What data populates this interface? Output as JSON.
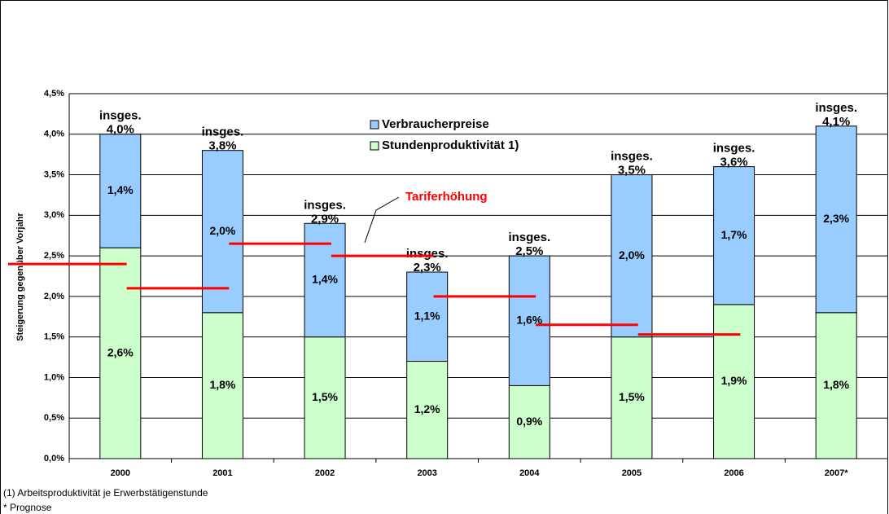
{
  "chart_data": {
    "type": "stacked_bar",
    "y_label": "Steigerung gegenüber Vorjahr",
    "categories": [
      "2000",
      "2001",
      "2002",
      "2003",
      "2004",
      "2005",
      "2006",
      "2007*"
    ],
    "series": [
      {
        "name": "Stundenproduktivität 1)",
        "color": "#ccffcc",
        "values": [
          2.6,
          1.8,
          1.5,
          1.2,
          0.9,
          1.5,
          1.9,
          1.8
        ],
        "value_labels": [
          "2,6%",
          "1,8%",
          "1,5%",
          "1,2%",
          "0,9%",
          "1,5%",
          "1,9%",
          "1,8%"
        ]
      },
      {
        "name": "Verbraucherpreise",
        "color": "#99ccff",
        "values": [
          1.4,
          2.0,
          1.4,
          1.1,
          1.6,
          2.0,
          1.7,
          2.3
        ],
        "value_labels": [
          "1,4%",
          "2,0%",
          "1,4%",
          "1,1%",
          "1,6%",
          "2,0%",
          "1,7%",
          "2,3%"
        ]
      }
    ],
    "total_prefix": "insges.",
    "totals": {
      "values": [
        4.0,
        3.8,
        2.9,
        2.3,
        2.5,
        3.5,
        3.6,
        4.1
      ],
      "value_labels": [
        "4,0%",
        "3,8%",
        "2,9%",
        "2,3%",
        "2,5%",
        "3,5%",
        "3,6%",
        "4,1%"
      ]
    },
    "tariff": {
      "name": "Tariferhöhung",
      "color": "#ff0000",
      "values": [
        2.4,
        2.1,
        2.65,
        2.5,
        2.0,
        1.65,
        1.53,
        null
      ]
    },
    "ylim": [
      0,
      4.5
    ],
    "yticks": [
      {
        "value": 0,
        "label": "0,0%"
      },
      {
        "value": 0.5,
        "label": "0,5%"
      },
      {
        "value": 1,
        "label": "1,0%"
      },
      {
        "value": 1.5,
        "label": "1,5%"
      },
      {
        "value": 2,
        "label": "2,0%"
      },
      {
        "value": 2.5,
        "label": "2,5%"
      },
      {
        "value": 3,
        "label": "3,0%"
      },
      {
        "value": 3.5,
        "label": "3,5%"
      },
      {
        "value": 4,
        "label": "4,0%"
      },
      {
        "value": 4.5,
        "label": "4,5%"
      }
    ],
    "grid": true,
    "footnotes": [
      "(1) Arbeitsproduktivität je Erwerbstätigenstunde",
      "* Prognose"
    ]
  }
}
